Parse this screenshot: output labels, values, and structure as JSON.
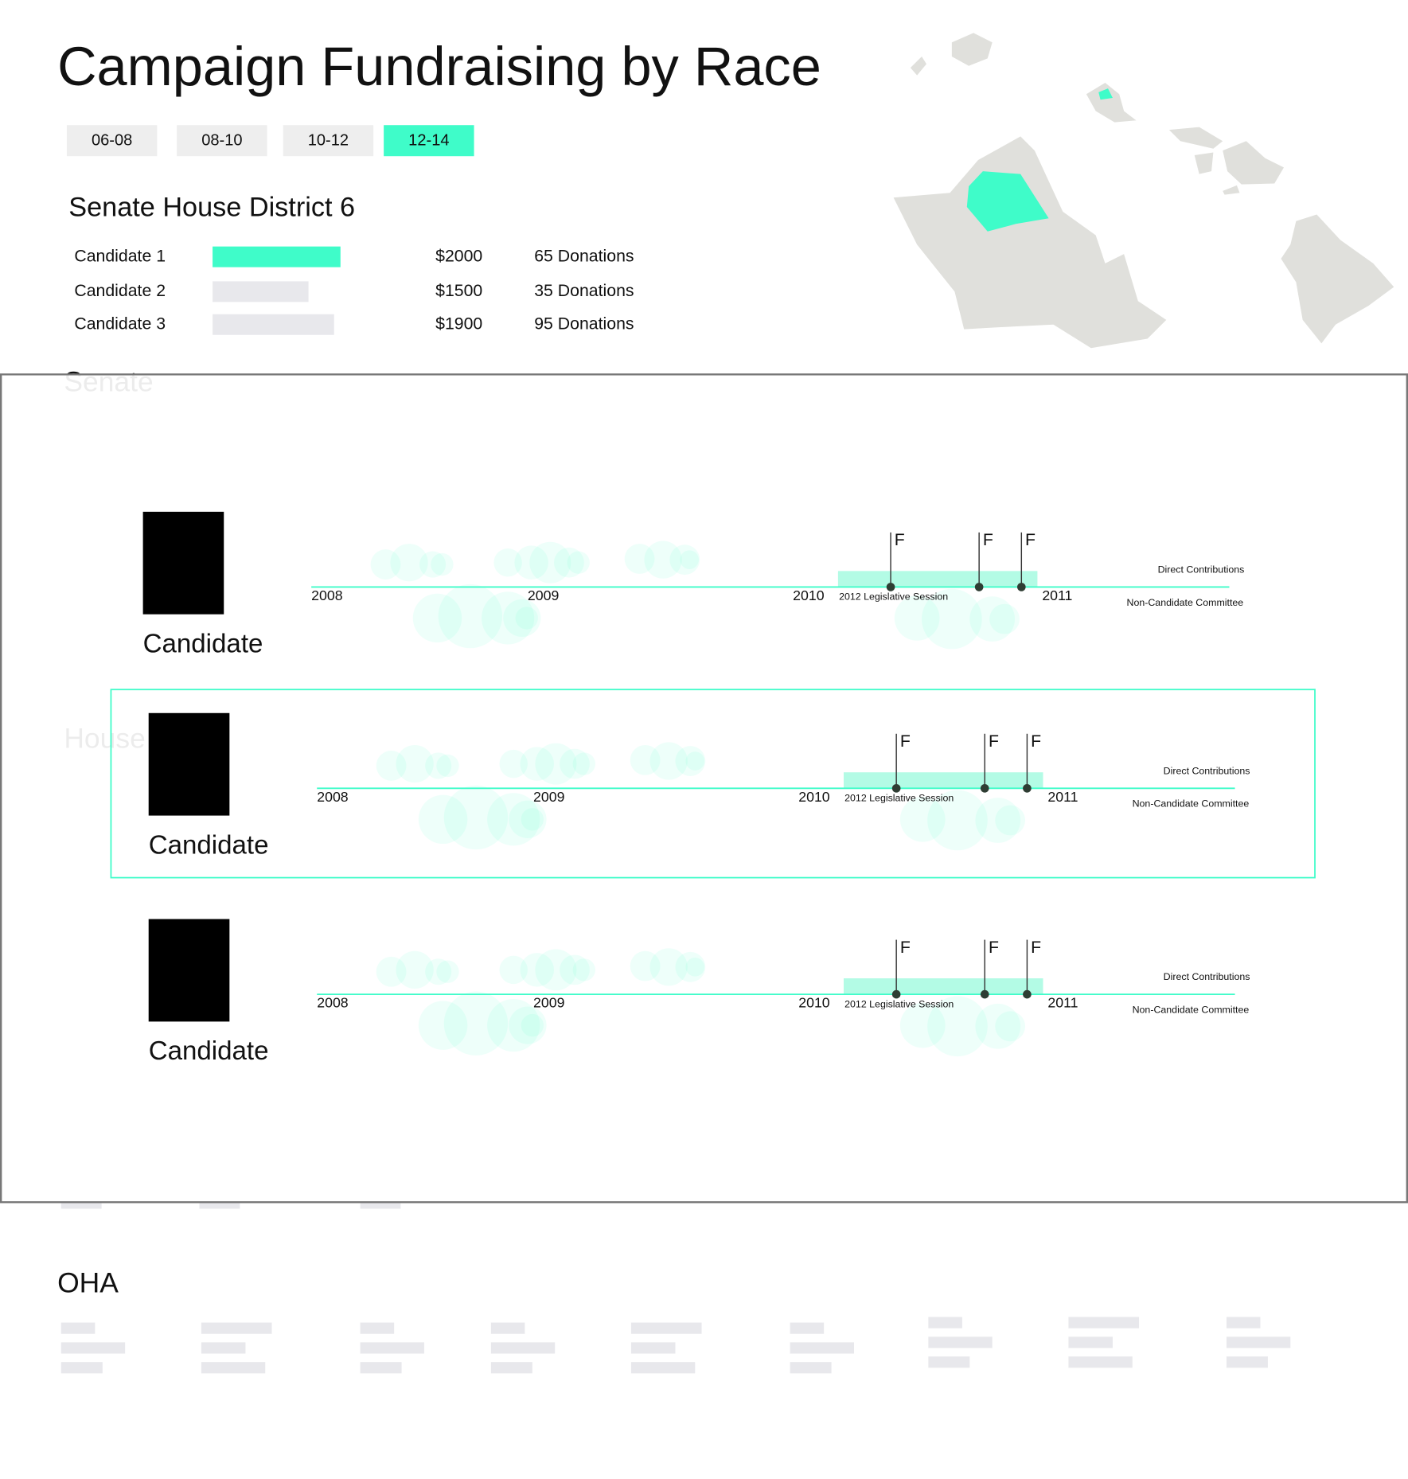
{
  "header": {
    "title": "Campaign Fundraising by Race"
  },
  "tabs": [
    {
      "label": "06-08",
      "active": false
    },
    {
      "label": "08-10",
      "active": false
    },
    {
      "label": "10-12",
      "active": false
    },
    {
      "label": "12-14",
      "active": true
    }
  ],
  "race": {
    "title": "Senate House District 6",
    "candidates": [
      {
        "name": "Candidate 1",
        "amount": {
          "value": 2000,
          "label": "$2000"
        },
        "donations": "65 Donations",
        "color": "#3ffcc9"
      },
      {
        "name": "Candidate 2",
        "amount": {
          "value": 1500,
          "label": "$1500"
        },
        "donations": "35 Donations",
        "color": "#e8e8ec"
      },
      {
        "name": "Candidate 3",
        "amount": {
          "value": 1900,
          "label": "$1900"
        },
        "donations": "95 Donations",
        "color": "#e8e8ec"
      }
    ]
  },
  "background": {
    "sections": [
      "Senate",
      "House"
    ]
  },
  "modal": {
    "rows": [
      {
        "name": "Candidate",
        "highlighted": false,
        "years": [
          "2008",
          "2009",
          "2010",
          "2011"
        ],
        "session": "2012 Legislative Session",
        "flags": [
          "F",
          "F",
          "F"
        ],
        "series_labels": [
          "Direct Contributions",
          "Non-Candidate Committee"
        ]
      },
      {
        "name": "Candidate",
        "highlighted": true,
        "years": [
          "2008",
          "2009",
          "2010",
          "2011"
        ],
        "session": "2012 Legislative Session",
        "flags": [
          "F",
          "F",
          "F"
        ],
        "series_labels": [
          "Direct Contributions",
          "Non-Candidate Committee"
        ]
      },
      {
        "name": "Candidate",
        "highlighted": false,
        "years": [
          "2008",
          "2009",
          "2010",
          "2011"
        ],
        "session": "2012 Legislative Session",
        "flags": [
          "F",
          "F",
          "F"
        ],
        "series_labels": [
          "Direct Contributions",
          "Non-Candidate Committee"
        ]
      }
    ]
  },
  "oha": {
    "title": "OHA"
  }
}
